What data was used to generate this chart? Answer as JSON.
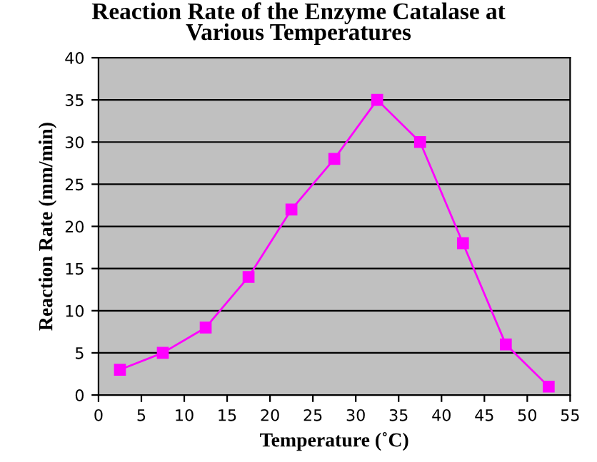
{
  "chart_data": {
    "type": "line",
    "title": "Reaction Rate of the Enzyme Catalase at\nVarious Temperatures",
    "xlabel": "Temperature (˚C)",
    "ylabel": "Reaction Rate (mm/min)",
    "x": [
      2.5,
      7.5,
      12.5,
      17.5,
      22.5,
      27.5,
      32.5,
      37.5,
      42.5,
      47.5,
      52.5
    ],
    "series": [
      {
        "color": "#ff00ff",
        "values": [
          3,
          5,
          8,
          14,
          22,
          28,
          35,
          30,
          18,
          6,
          1
        ]
      }
    ],
    "xlim": [
      0,
      55
    ],
    "xticks": [
      0,
      5,
      10,
      15,
      20,
      25,
      30,
      35,
      40,
      45,
      50,
      55
    ],
    "ylim": [
      0,
      40
    ],
    "yticks": [
      0,
      5,
      10,
      15,
      20,
      25,
      30,
      35,
      40
    ],
    "grid": "y",
    "marker": "square",
    "line_style": "solid",
    "legend": false
  }
}
